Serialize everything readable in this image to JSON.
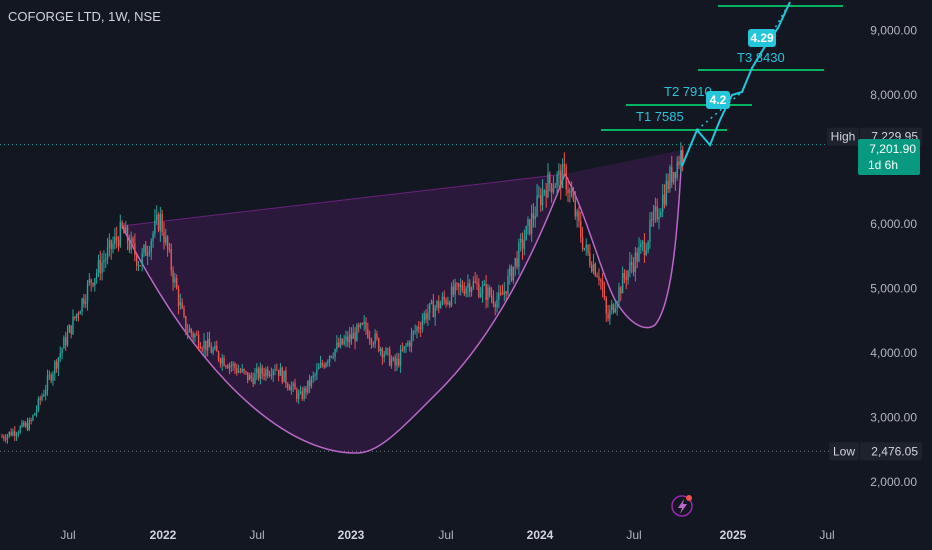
{
  "header": {
    "symbol": "COFORGE LTD, 1W, NSE"
  },
  "chart_data": {
    "type": "candlestick",
    "x_ticks": [
      "Jul",
      "2022",
      "Jul",
      "2023",
      "Jul",
      "2024",
      "Jul",
      "2025",
      "Jul"
    ],
    "y_ticks": [
      "2,000.00",
      "3,000.00",
      "4,000.00",
      "5,000.00",
      "6,000.00",
      "7,000.00",
      "8,000.00",
      "9,000.00"
    ],
    "ylim": [
      1700,
      9500
    ],
    "high": {
      "label": "High",
      "value": "7,229.95",
      "y": 7229.95
    },
    "low": {
      "label": "Low",
      "value": "2,476.05",
      "y": 2476.05
    },
    "last": {
      "value": "7,201.90",
      "countdown": "1d 6h",
      "y": 7201.9
    },
    "targets": [
      {
        "label": "T1 7585",
        "y": 7585
      },
      {
        "label": "T2 7910",
        "y": 7910
      },
      {
        "label": "T3 8430",
        "y": 8430
      }
    ],
    "badges": [
      {
        "label": "4.2"
      },
      {
        "label": "4.29"
      }
    ],
    "pattern": "cup-and-handle",
    "colors": {
      "up": "#26a69a",
      "down": "#ef5350",
      "cup": "#ba68c8",
      "target": "#26c6da",
      "level": "#00e676",
      "bg": "#131722"
    }
  }
}
